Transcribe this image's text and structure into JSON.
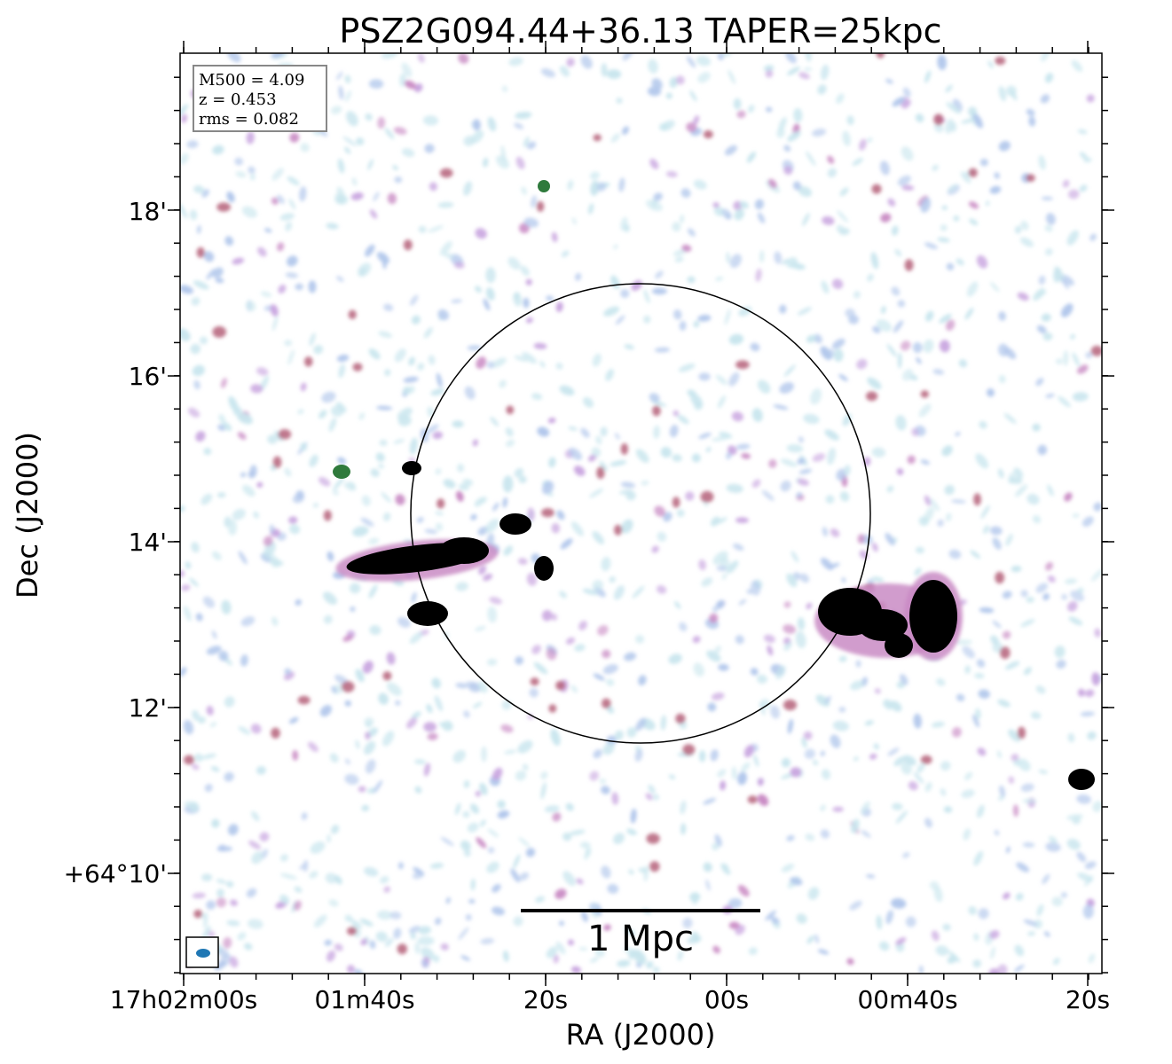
{
  "chart_data": {
    "type": "heatmap",
    "title": "PSZ2G094.44+36.13 TAPER=25kpc",
    "xlabel": "RA (J2000)",
    "ylabel": "Dec (J2000)",
    "x_ticks": [
      "17h02m00s",
      "01m40s",
      "20s",
      "00s",
      "00m40s",
      "20s"
    ],
    "y_ticks": [
      "+64°10'",
      "12'",
      "14'",
      "16'",
      "18'"
    ],
    "info_box": [
      "M500 = 4.09",
      "z = 0.453",
      "rms = 0.082"
    ],
    "scale_bar_label": "1 Mpc",
    "circle": "R500 aperture centred on cluster",
    "beam": "restoring beam ellipse (lower-left)",
    "colormap": [
      "#c9e6ee",
      "#b3c8ec",
      "#c9a6e0",
      "#c98bc4",
      "#b5607a",
      "#2f7a3c",
      "#000000"
    ],
    "grid": false
  }
}
